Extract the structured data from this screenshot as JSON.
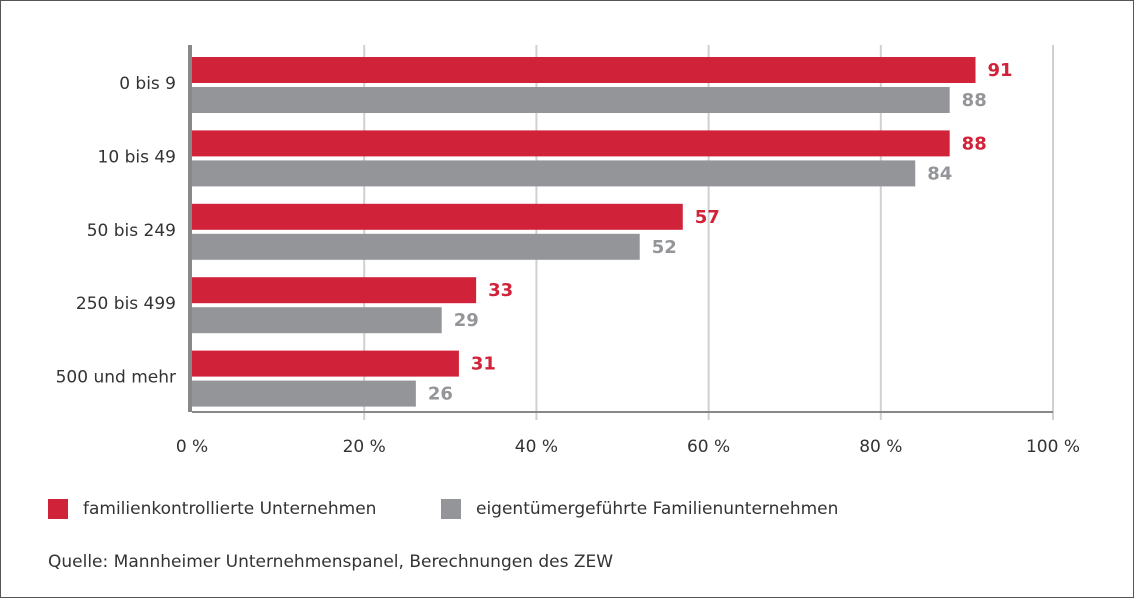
{
  "chart_data": {
    "type": "bar",
    "orientation": "horizontal",
    "categories": [
      "0 bis 9",
      "10 bis 49",
      "50 bis 249",
      "250 bis 499",
      "500 und mehr"
    ],
    "series": [
      {
        "name": "familienkontrollierte Unternehmen",
        "color": "#d0233a",
        "values": [
          91,
          88,
          57,
          33,
          31
        ]
      },
      {
        "name": "eigentümergeführte Familienunternehmen",
        "color": "#939598",
        "values": [
          88,
          84,
          52,
          29,
          26
        ]
      }
    ],
    "xlim": [
      0,
      100
    ],
    "xticks": [
      {
        "value": 0,
        "label": "0 %"
      },
      {
        "value": 20,
        "label": "20 %"
      },
      {
        "value": 40,
        "label": "40 %"
      },
      {
        "value": 60,
        "label": "60 %"
      },
      {
        "value": 80,
        "label": "80 %"
      },
      {
        "value": 100,
        "label": "100 %"
      }
    ],
    "grid": true,
    "source": "Quelle: Mannheimer Unternehmenspanel, Berechnungen des ZEW"
  }
}
